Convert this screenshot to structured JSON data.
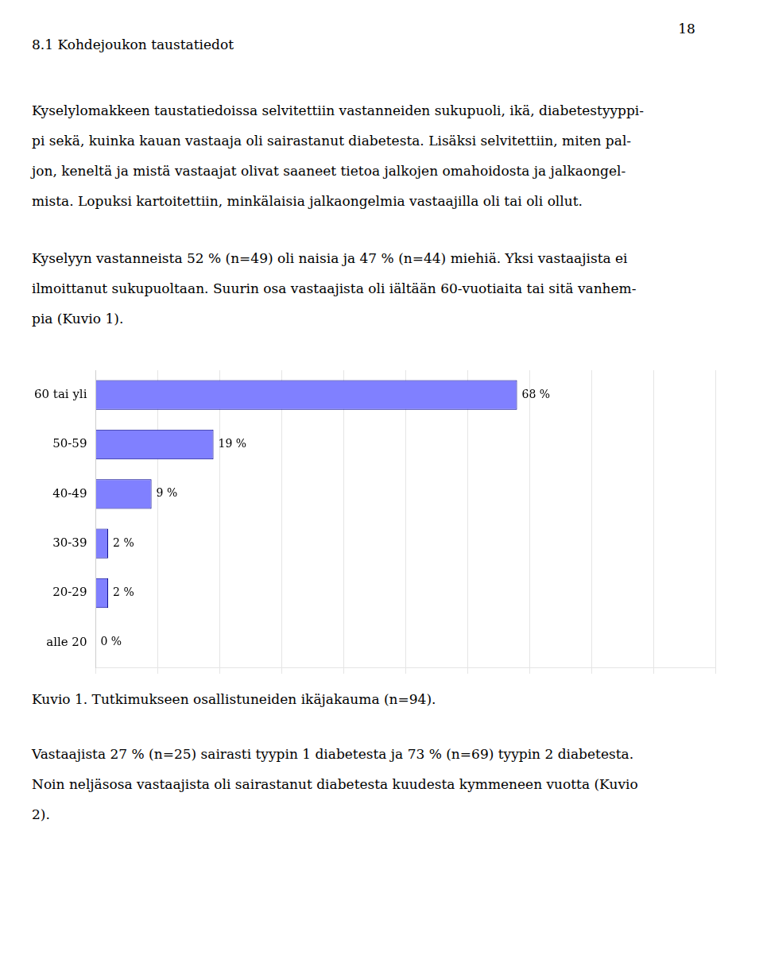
{
  "page_number": "18",
  "heading": "8.1 Kohdejoukon taustatiedot",
  "text_before": [
    [
      "Kyselylomakkeen taustatiedoissa selvitettiin vastanneiden sukupuoli, ikä, diabetestyyppi-",
      "pi sekä, kuinka kauan vastaaja oli sairastanut diabetesta. Lisäksi selvitettiin, miten pal-",
      "jon, keneltä ja mistä vastaajat olivat saaneet tietoa jalkojen omahoidosta ja jalkaongel-",
      "mista. Lopuksi kartoitettiin, minkälaisia jalkaongelmia vastaajilla oli tai oli ollut."
    ],
    [
      "Kyselyyn vastanneista 52 % (n=49) oli naisia ja 47 % (n=44) miehiä. Yksi vastaajista ei",
      "ilmoittanut sukupuoltaan. Suurin osa vastaajista oli iältään 60-vuotiaita tai sitä vanhem-",
      "pia (Kuvio 1)."
    ]
  ],
  "text_after": [
    [
      "Vastaajista 27 % (n=25) sairasti tyypin 1 diabetesta ja 73 % (n=69) tyypin 2 diabetesta.",
      "Noin neljäsosa vastaajista oli sairastanut diabetesta kuudesta kymmeneen vuotta (Kuvio",
      "2)."
    ]
  ],
  "chart_data": {
    "type": "bar",
    "orientation": "horizontal",
    "title": "Kuvio 1. Tutkimukseen osallistuneiden ikäjakauma (n=94).",
    "categories": [
      "60 tai yli",
      "50-59",
      "40-49",
      "30-39",
      "20-29",
      "alle 20"
    ],
    "values": [
      68,
      19,
      9,
      2,
      2,
      0
    ],
    "value_labels": [
      "68 %",
      "19 %",
      "9 %",
      "2 %",
      "2 %",
      "0 %"
    ],
    "data_labels": true,
    "color": "#8080ff",
    "xlim": [
      0,
      100
    ],
    "xticks": [
      0,
      10,
      20,
      30,
      40,
      50,
      60,
      70,
      80,
      90,
      100
    ],
    "grid": true,
    "tick_labels": "y"
  }
}
